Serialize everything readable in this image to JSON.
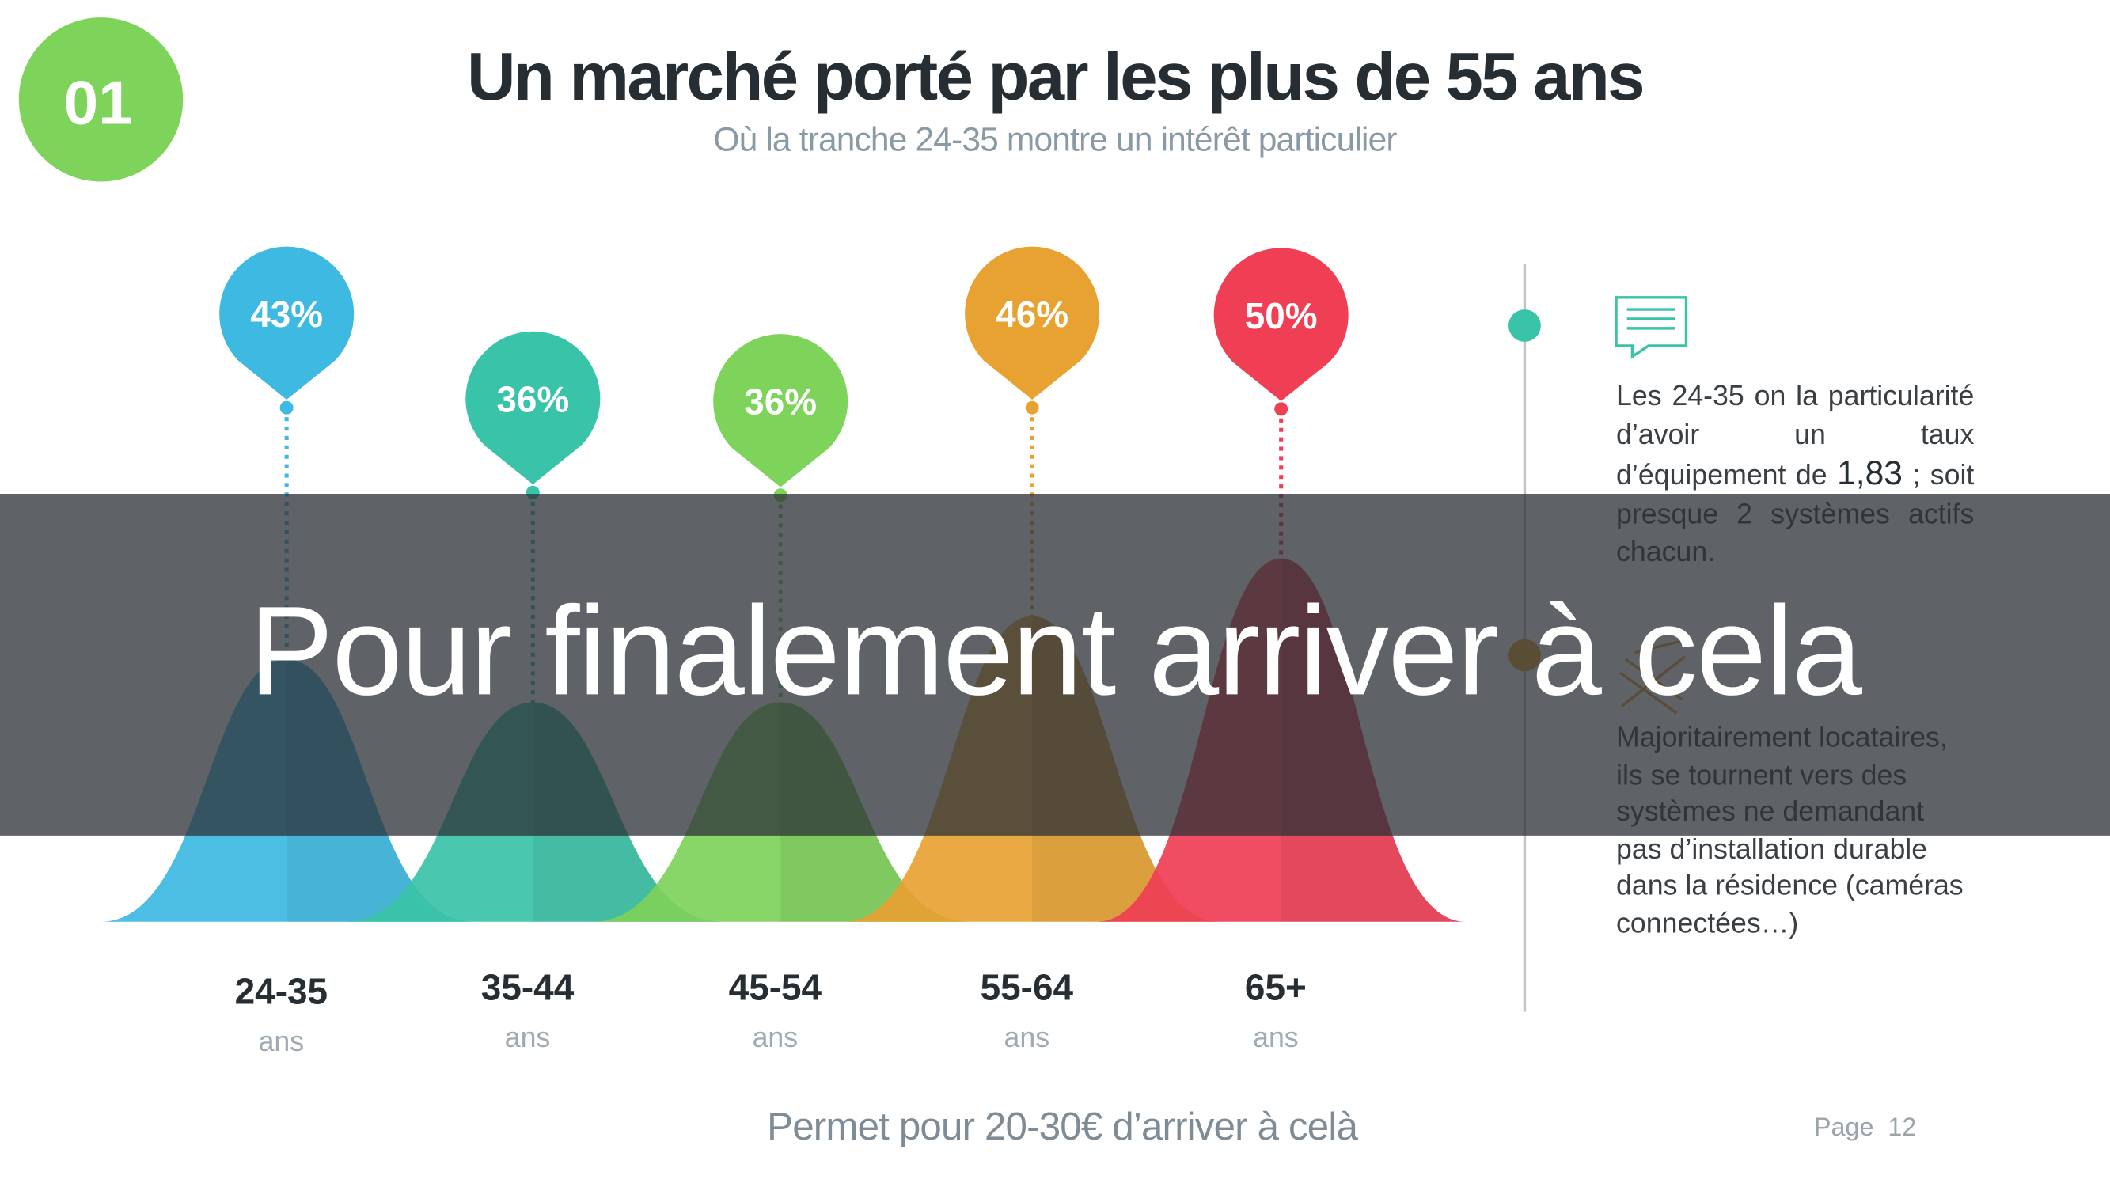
{
  "badge": {
    "number": "01",
    "color": "#7ed35a"
  },
  "header": {
    "title": "Un marché porté par les plus de 55 ans",
    "subtitle": "Où la tranche 24-35 montre un intérêt particulier"
  },
  "groups": [
    {
      "percent": "43%",
      "age": "24-35",
      "unit": "ans",
      "value": 43,
      "color": "#3db9e2"
    },
    {
      "percent": "36%",
      "age": "35-44",
      "unit": "ans",
      "value": 36,
      "color": "#39c3a8"
    },
    {
      "percent": "36%",
      "age": "45-54",
      "unit": "ans",
      "value": 36,
      "color": "#7ed35a"
    },
    {
      "percent": "46%",
      "age": "55-64",
      "unit": "ans",
      "value": 46,
      "color": "#e8a232"
    },
    {
      "percent": "50%",
      "age": "65+",
      "unit": "ans",
      "value": 50,
      "color": "#f03e55"
    }
  ],
  "side": {
    "timeline_dot_color": "#39c3a8",
    "icons": [
      "speech-bubble-icon",
      "ruler-pencil-icon"
    ],
    "para1": {
      "before": "Les 24-35 on la particularité d’avoir un taux d’équipement de ",
      "highlight": "1,83",
      "after": " ; soit presque 2 systèmes actifs chacun."
    },
    "para2": "Majoritairement locataires, ils se tournent vers des systèmes ne demandant pas d’installation durable dans la résidence (caméras connectées…)"
  },
  "footer": {
    "text": "Permet pour 20-30€ d’arriver à celà",
    "page_label": "Page",
    "page_number": "12"
  },
  "overlay": {
    "text": "Pour finalement arriver à cela"
  }
}
